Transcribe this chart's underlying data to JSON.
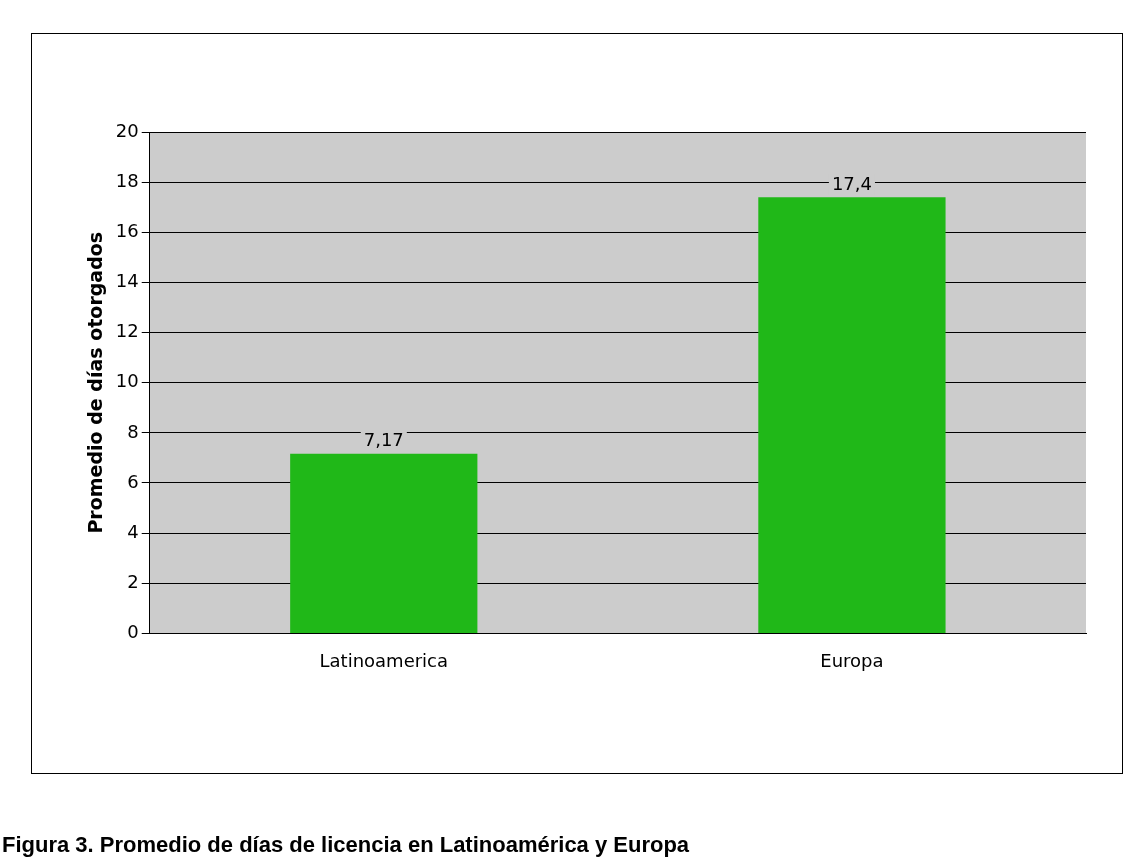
{
  "chart_data": {
    "type": "bar",
    "ylabel": "Promedio de días otorgados",
    "categories": [
      "Latinoamerica",
      "Europa"
    ],
    "values": [
      7.17,
      17.4
    ],
    "color": "#20b818",
    "value_labels": [
      "7,17",
      "17,4"
    ],
    "ylim": [
      0,
      20
    ],
    "yticks": [
      0,
      2,
      4,
      6,
      8,
      10,
      12,
      14,
      16,
      18,
      20
    ],
    "grid": "y",
    "legend": false,
    "annotations": [
      "Figura 3. Promedio de días de licencia en Latinoamérica y Europa"
    ]
  }
}
